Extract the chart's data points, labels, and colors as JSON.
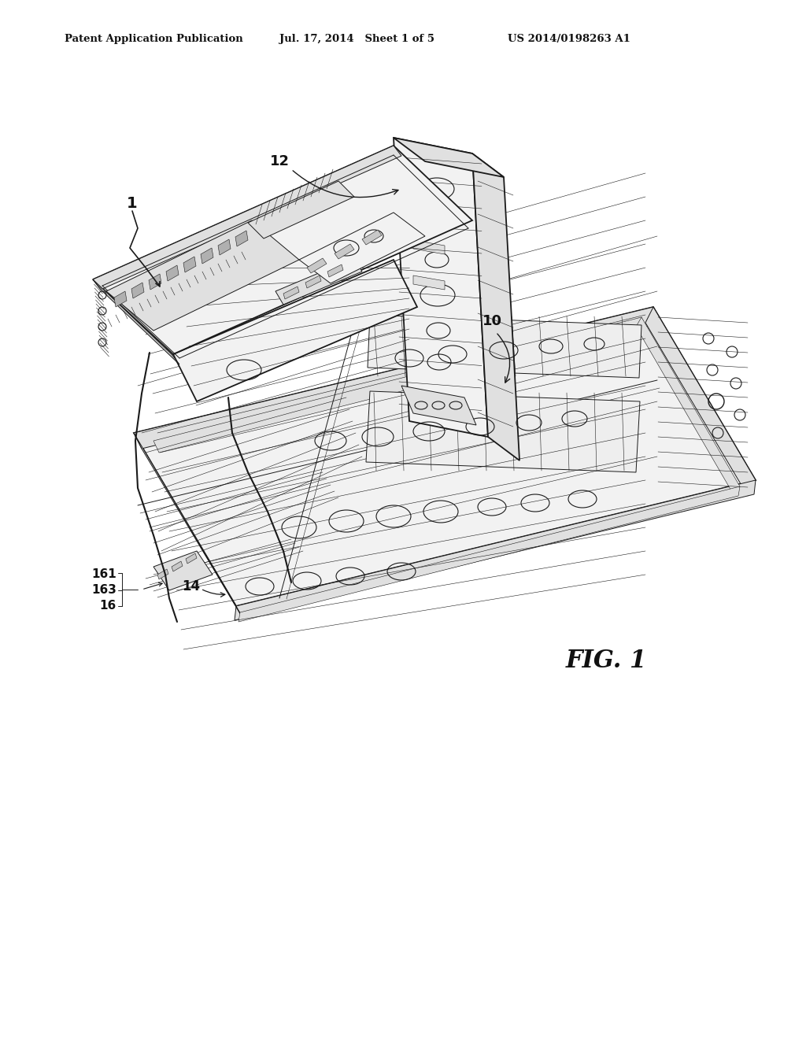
{
  "bg_color": "#ffffff",
  "header_left": "Patent Application Publication",
  "header_center": "Jul. 17, 2014   Sheet 1 of 5",
  "header_right": "US 2014/0198263 A1",
  "fig_label": "FIG. 1",
  "line_color": "#1a1a1a",
  "fill_light": "#f2f2f2",
  "fill_mid": "#e0e0e0",
  "fill_dark": "#c8c8c8",
  "fill_darker": "#b0b0b0"
}
